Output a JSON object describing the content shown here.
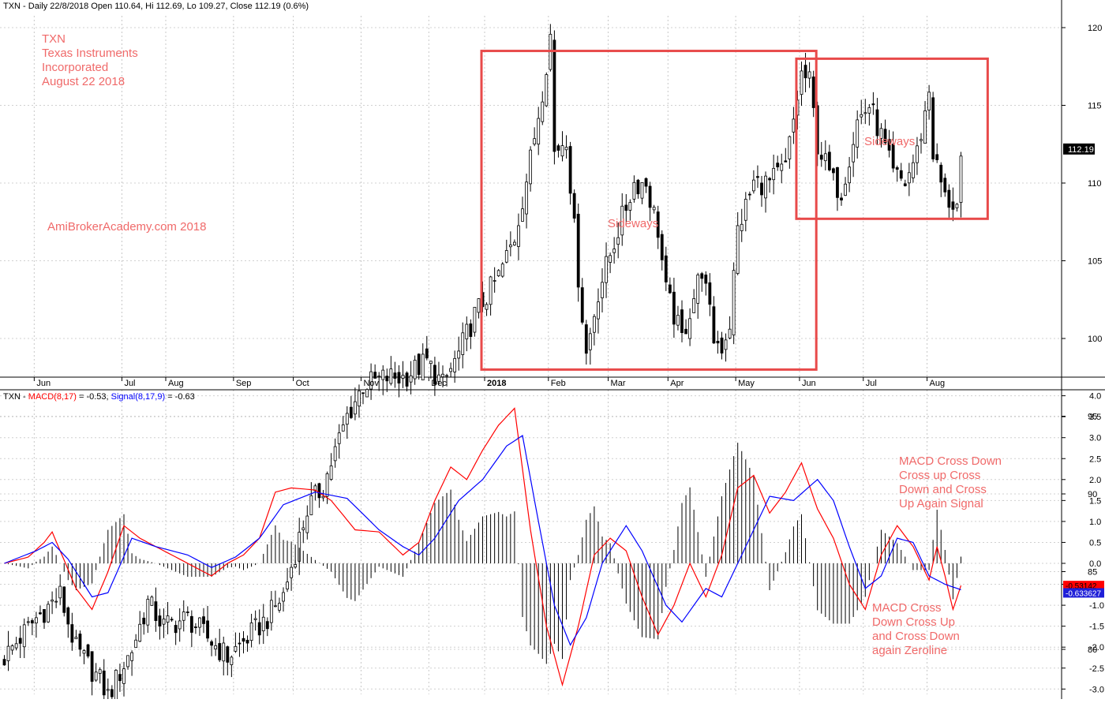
{
  "chart_data": [
    {
      "type": "candlestick",
      "header": "TXN - Daily 22/8/2018 Open 110.64, Hi 112.69, Lo 109.27, Close 112.19 (0.6%)",
      "symbol": "TXN",
      "last_price_label": "112.19",
      "y_ticks": [
        "120",
        "115",
        "110",
        "105",
        "100",
        "95",
        "90",
        "85",
        "80"
      ],
      "ylim": [
        75.5,
        122.5
      ],
      "x_ticks": [
        "Jun",
        "Jul",
        "Aug",
        "Sep",
        "Oct",
        "Nov",
        "Dec",
        "2018",
        "Feb",
        "Mar",
        "Apr",
        "May",
        "Jun",
        "Jul",
        "Aug"
      ],
      "anchors": [
        [
          0,
          79.5
        ],
        [
          8,
          82
        ],
        [
          14,
          83.5
        ],
        [
          18,
          80
        ],
        [
          24,
          78
        ],
        [
          26,
          77
        ],
        [
          32,
          80
        ],
        [
          36,
          83
        ],
        [
          40,
          81.5
        ],
        [
          46,
          82
        ],
        [
          50,
          81
        ],
        [
          56,
          79.5
        ],
        [
          60,
          80.5
        ],
        [
          66,
          82
        ],
        [
          70,
          83.5
        ],
        [
          76,
          89
        ],
        [
          80,
          90.5
        ],
        [
          86,
          95
        ],
        [
          90,
          97
        ],
        [
          96,
          97.5
        ],
        [
          100,
          97.5
        ],
        [
          106,
          98.5
        ],
        [
          110,
          97
        ],
        [
          114,
          99
        ],
        [
          118,
          101.5
        ],
        [
          124,
          104
        ],
        [
          128,
          106.5
        ],
        [
          132,
          111.5
        ],
        [
          135,
          116
        ],
        [
          137,
          119.5
        ],
        [
          138,
          112
        ],
        [
          141,
          113
        ],
        [
          144,
          104
        ],
        [
          146,
          99
        ],
        [
          149,
          103
        ],
        [
          154,
          107
        ],
        [
          158,
          110
        ],
        [
          161,
          110
        ],
        [
          164,
          107
        ],
        [
          166,
          103
        ],
        [
          170,
          100
        ],
        [
          175,
          104.5
        ],
        [
          178,
          100
        ],
        [
          180,
          99.5
        ],
        [
          182,
          101
        ],
        [
          184,
          107
        ],
        [
          188,
          110
        ],
        [
          192,
          110
        ],
        [
          196,
          111
        ],
        [
          200,
          117
        ],
        [
          202,
          116.5
        ],
        [
          204,
          112.5
        ],
        [
          208,
          110
        ],
        [
          210,
          109.5
        ],
        [
          214,
          114
        ],
        [
          217,
          115
        ],
        [
          220,
          113
        ],
        [
          223,
          110.5
        ],
        [
          226,
          110
        ],
        [
          229,
          112
        ],
        [
          231,
          114.5
        ],
        [
          232,
          116
        ],
        [
          233,
          112
        ],
        [
          236,
          109
        ],
        [
          239,
          108.5
        ],
        [
          240,
          111
        ]
      ],
      "annotations": {
        "title_lines": [
          "TXN",
          "Texas Instruments",
          "Incorporated",
          "August 22 2018"
        ],
        "watermark": "AmiBrokerAcademy.com  2018",
        "box1_label": "Sideways",
        "box2_label": "Sideways"
      }
    },
    {
      "type": "line",
      "header": {
        "prefix": "TXN - ",
        "macd": "MACD(8,17)",
        "macd_val": " = -0.53, ",
        "signal": "Signal(8,17,9)",
        "signal_val": " = -0.63"
      },
      "y_ticks": [
        "4.0",
        "3.5",
        "3.0",
        "2.5",
        "2.0",
        "1.5",
        "1.0",
        "0.5",
        "0.0",
        "-0.5",
        "-1.0",
        "-1.5",
        "-2.0",
        "-2.5",
        "-3.0"
      ],
      "ylim": [
        -3.1,
        4.1
      ],
      "series": [
        {
          "name": "MACD(8,17)",
          "color": "#ff0000",
          "last_label": "-0.53142",
          "anchors": [
            [
              0,
              0
            ],
            [
              6,
              0.15
            ],
            [
              10,
              0.5
            ],
            [
              12,
              0.75
            ],
            [
              14,
              0.3
            ],
            [
              18,
              -0.6
            ],
            [
              22,
              -1.1
            ],
            [
              26,
              -0.2
            ],
            [
              30,
              0.9
            ],
            [
              34,
              0.6
            ],
            [
              40,
              0.3
            ],
            [
              44,
              0.1
            ],
            [
              48,
              -0.1
            ],
            [
              52,
              -0.3
            ],
            [
              56,
              0
            ],
            [
              60,
              0.2
            ],
            [
              64,
              0.6
            ],
            [
              68,
              1.7
            ],
            [
              72,
              1.8
            ],
            [
              78,
              1.75
            ],
            [
              82,
              1.5
            ],
            [
              88,
              0.8
            ],
            [
              94,
              0.75
            ],
            [
              100,
              0.2
            ],
            [
              104,
              0.5
            ],
            [
              108,
              1.5
            ],
            [
              112,
              2.3
            ],
            [
              116,
              2.0
            ],
            [
              120,
              2.7
            ],
            [
              124,
              3.3
            ],
            [
              128,
              3.7
            ],
            [
              132,
              0.8
            ],
            [
              136,
              -1.5
            ],
            [
              140,
              -2.9
            ],
            [
              144,
              -1.5
            ],
            [
              148,
              0.2
            ],
            [
              152,
              0.6
            ],
            [
              156,
              0.3
            ],
            [
              160,
              -0.8
            ],
            [
              164,
              -1.7
            ],
            [
              168,
              -1.0
            ],
            [
              172,
              0
            ],
            [
              176,
              -0.8
            ],
            [
              180,
              0.2
            ],
            [
              184,
              1.8
            ],
            [
              188,
              2.1
            ],
            [
              192,
              1.2
            ],
            [
              196,
              1.7
            ],
            [
              200,
              2.4
            ],
            [
              204,
              1.3
            ],
            [
              208,
              0.6
            ],
            [
              212,
              -0.5
            ],
            [
              216,
              -1.1
            ],
            [
              220,
              0.2
            ],
            [
              224,
              0.9
            ],
            [
              228,
              0.4
            ],
            [
              232,
              -0.4
            ],
            [
              234,
              0.4
            ],
            [
              236,
              -0.3
            ],
            [
              238,
              -1.1
            ],
            [
              240,
              -0.53
            ]
          ]
        },
        {
          "name": "Signal(8,17,9)",
          "color": "#0000ff",
          "last_label": "-0.633627",
          "anchors": [
            [
              0,
              0
            ],
            [
              8,
              0.3
            ],
            [
              12,
              0.5
            ],
            [
              16,
              0.1
            ],
            [
              22,
              -0.8
            ],
            [
              26,
              -0.7
            ],
            [
              32,
              0.6
            ],
            [
              38,
              0.4
            ],
            [
              46,
              0.2
            ],
            [
              52,
              -0.1
            ],
            [
              58,
              0.15
            ],
            [
              64,
              0.6
            ],
            [
              70,
              1.4
            ],
            [
              78,
              1.7
            ],
            [
              86,
              1.55
            ],
            [
              94,
              0.8
            ],
            [
              100,
              0.4
            ],
            [
              104,
              0.2
            ],
            [
              108,
              0.6
            ],
            [
              114,
              1.5
            ],
            [
              120,
              2.0
            ],
            [
              126,
              2.8
            ],
            [
              130,
              3.05
            ],
            [
              134,
              1.0
            ],
            [
              138,
              -1.0
            ],
            [
              142,
              -1.95
            ],
            [
              146,
              -1.3
            ],
            [
              150,
              0
            ],
            [
              156,
              0.9
            ],
            [
              160,
              0.3
            ],
            [
              166,
              -1.0
            ],
            [
              170,
              -1.4
            ],
            [
              176,
              -0.6
            ],
            [
              180,
              -0.8
            ],
            [
              186,
              0.4
            ],
            [
              192,
              1.6
            ],
            [
              198,
              1.5
            ],
            [
              204,
              2.0
            ],
            [
              208,
              1.5
            ],
            [
              212,
              0.4
            ],
            [
              216,
              -0.6
            ],
            [
              220,
              -0.3
            ],
            [
              224,
              0.6
            ],
            [
              228,
              0.5
            ],
            [
              232,
              -0.3
            ],
            [
              236,
              -0.5
            ],
            [
              240,
              -0.63
            ]
          ]
        }
      ],
      "annotations": {
        "cross_lines": [
          "MACD Cross Down",
          "Cross up Cross",
          "Down and Cross",
          "Up Again Signal"
        ],
        "zero_lines": [
          "MACD Cross",
          "Down Cross Up",
          "and Cross Down",
          "again Zeroline"
        ]
      }
    }
  ]
}
